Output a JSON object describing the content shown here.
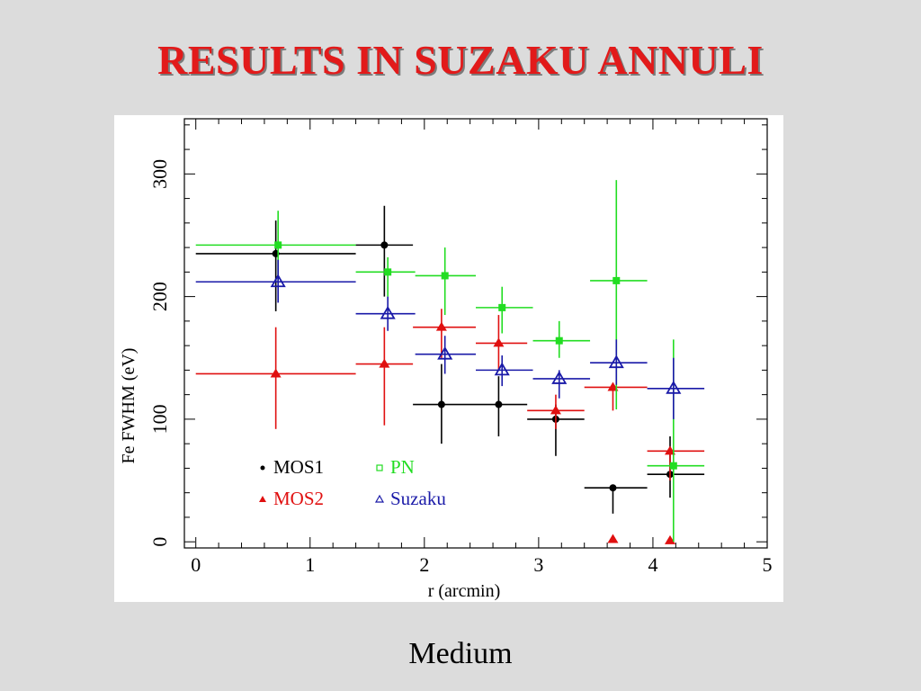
{
  "slide": {
    "title": "RESULTS IN SUZAKU ANNULI",
    "caption": "Medium"
  },
  "colors": {
    "title": "#e21a1a",
    "MOS1": "#000000",
    "MOS2": "#e01010",
    "PN": "#22dd22",
    "Suzaku": "#1a1aa8"
  },
  "chart_data": {
    "type": "scatter",
    "title": "",
    "xlabel": "r (arcmin)",
    "ylabel": "Fe FWHM (eV)",
    "xlim": [
      -0.1,
      5.0
    ],
    "ylim": [
      -5,
      345
    ],
    "xticks": [
      0,
      1,
      2,
      3,
      4,
      5
    ],
    "yticks": [
      0,
      100,
      200,
      300
    ],
    "legend_position": "lower-left",
    "grid": false,
    "series": [
      {
        "name": "MOS1",
        "marker": "circle",
        "color": "#000000",
        "points": [
          {
            "x": 0.7,
            "xlo": 0.0,
            "xhi": 1.4,
            "y": 235,
            "ylo": 188,
            "yhi": 262
          },
          {
            "x": 1.65,
            "xlo": 1.4,
            "xhi": 1.9,
            "y": 242,
            "ylo": 200,
            "yhi": 274
          },
          {
            "x": 2.15,
            "xlo": 1.9,
            "xhi": 2.45,
            "y": 112,
            "ylo": 80,
            "yhi": 145
          },
          {
            "x": 2.65,
            "xlo": 2.45,
            "xhi": 2.9,
            "y": 112,
            "ylo": 86,
            "yhi": 135
          },
          {
            "x": 3.15,
            "xlo": 2.9,
            "xhi": 3.4,
            "y": 100,
            "ylo": 70,
            "yhi": 112
          },
          {
            "x": 3.65,
            "xlo": 3.4,
            "xhi": 3.95,
            "y": 44,
            "ylo": 23,
            "yhi": 44
          },
          {
            "x": 4.15,
            "xlo": 3.95,
            "xhi": 4.45,
            "y": 55,
            "ylo": 36,
            "yhi": 86
          }
        ]
      },
      {
        "name": "MOS2",
        "marker": "triangle",
        "color": "#e01010",
        "points": [
          {
            "x": 0.7,
            "xlo": 0.0,
            "xhi": 1.4,
            "y": 137,
            "ylo": 92,
            "yhi": 175
          },
          {
            "x": 1.65,
            "xlo": 1.4,
            "xhi": 1.9,
            "y": 145,
            "ylo": 95,
            "yhi": 175
          },
          {
            "x": 2.15,
            "xlo": 1.9,
            "xhi": 2.45,
            "y": 175,
            "ylo": 150,
            "yhi": 190
          },
          {
            "x": 2.65,
            "xlo": 2.45,
            "xhi": 2.9,
            "y": 162,
            "ylo": 140,
            "yhi": 185
          },
          {
            "x": 3.15,
            "xlo": 2.9,
            "xhi": 3.4,
            "y": 107,
            "ylo": 92,
            "yhi": 120
          },
          {
            "x": 3.65,
            "xlo": 3.4,
            "xhi": 3.95,
            "y": 126,
            "ylo": 107,
            "yhi": 126
          },
          {
            "x": 4.15,
            "xlo": 3.95,
            "xhi": 4.45,
            "y": 74,
            "ylo": 50,
            "yhi": 74
          },
          {
            "x": 3.65,
            "y": 2
          },
          {
            "x": 4.15,
            "y": 1
          }
        ]
      },
      {
        "name": "PN",
        "marker": "square",
        "color": "#22dd22",
        "points": [
          {
            "x": 0.72,
            "xlo": 0.0,
            "xhi": 1.4,
            "y": 242,
            "ylo": 212,
            "yhi": 270
          },
          {
            "x": 1.68,
            "xlo": 1.4,
            "xhi": 1.92,
            "y": 220,
            "ylo": 200,
            "yhi": 232
          },
          {
            "x": 2.18,
            "xlo": 1.92,
            "xhi": 2.45,
            "y": 217,
            "ylo": 185,
            "yhi": 240
          },
          {
            "x": 2.68,
            "xlo": 2.45,
            "xhi": 2.95,
            "y": 191,
            "ylo": 170,
            "yhi": 208
          },
          {
            "x": 3.18,
            "xlo": 2.95,
            "xhi": 3.45,
            "y": 164,
            "ylo": 150,
            "yhi": 180
          },
          {
            "x": 3.68,
            "xlo": 3.45,
            "xhi": 3.95,
            "y": 213,
            "ylo": 108,
            "yhi": 295
          },
          {
            "x": 4.18,
            "xlo": 3.95,
            "xhi": 4.45,
            "y": 62,
            "ylo": 0,
            "yhi": 165
          }
        ]
      },
      {
        "name": "Suzaku",
        "marker": "open-triangle",
        "color": "#1a1aa8",
        "points": [
          {
            "x": 0.72,
            "xlo": 0.0,
            "xhi": 1.4,
            "y": 212,
            "ylo": 195,
            "yhi": 230
          },
          {
            "x": 1.68,
            "xlo": 1.4,
            "xhi": 1.92,
            "y": 186,
            "ylo": 172,
            "yhi": 200
          },
          {
            "x": 2.18,
            "xlo": 1.92,
            "xhi": 2.45,
            "y": 153,
            "ylo": 137,
            "yhi": 168
          },
          {
            "x": 2.68,
            "xlo": 2.45,
            "xhi": 2.95,
            "y": 140,
            "ylo": 127,
            "yhi": 152
          },
          {
            "x": 3.18,
            "xlo": 2.95,
            "xhi": 3.45,
            "y": 133,
            "ylo": 117,
            "yhi": 140
          },
          {
            "x": 3.68,
            "xlo": 3.45,
            "xhi": 3.95,
            "y": 146,
            "ylo": 128,
            "yhi": 165
          },
          {
            "x": 4.18,
            "xlo": 3.95,
            "xhi": 4.45,
            "y": 125,
            "ylo": 100,
            "yhi": 150
          }
        ]
      }
    ]
  }
}
